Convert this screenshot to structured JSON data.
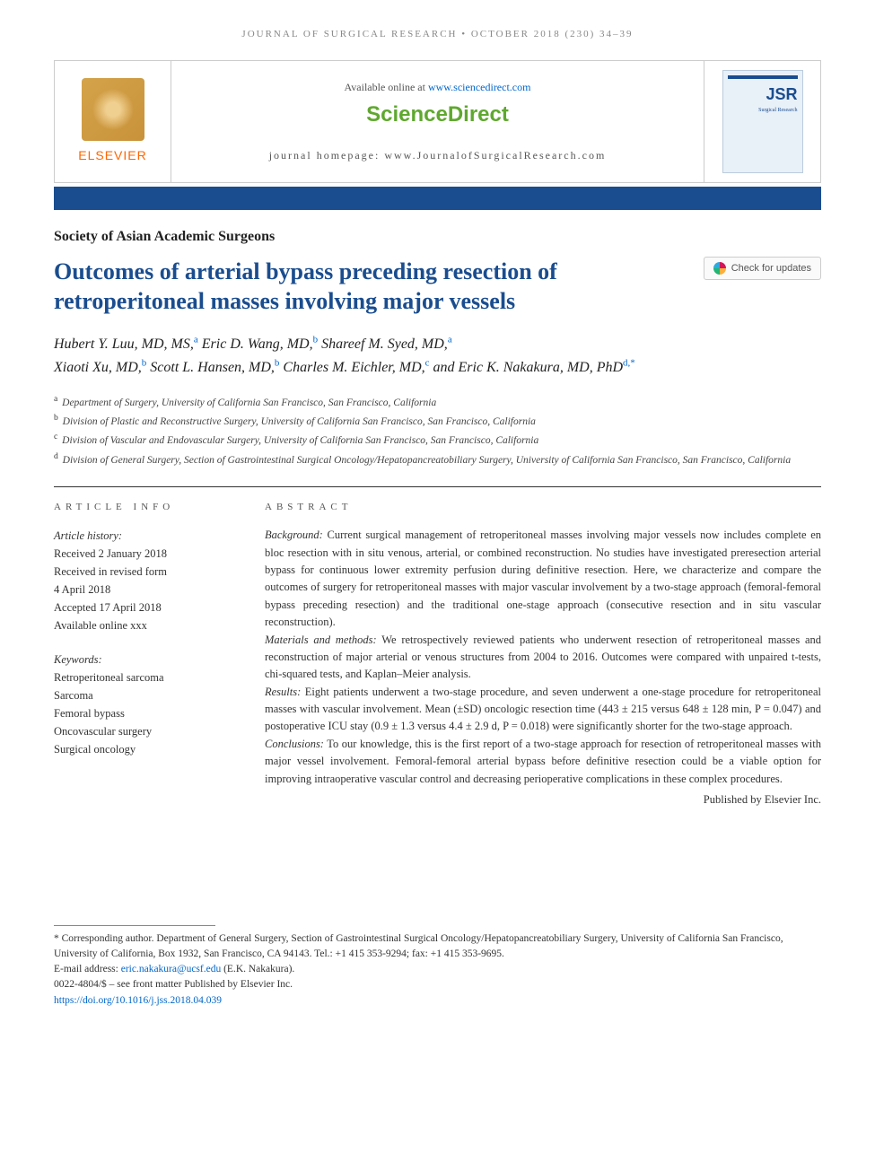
{
  "runningHeader": "JOURNAL OF SURGICAL RESEARCH • OCTOBER 2018 (230) 34–39",
  "masthead": {
    "publisher": "ELSEVIER",
    "availableText": "Available online at ",
    "availableUrl": "www.sciencedirect.com",
    "sdLogo": "ScienceDirect",
    "homepageLabel": "journal homepage: ",
    "homepageUrl": "www.JournalofSurgicalResearch.com",
    "coverAbbrev": "JSR",
    "coverSub": "Surgical Research"
  },
  "society": "Society of Asian Academic Surgeons",
  "title": "Outcomes of arterial bypass preceding resection of retroperitoneal masses involving major vessels",
  "checkUpdates": "Check for updates",
  "authors": [
    {
      "name": "Hubert Y. Luu, MD, MS,",
      "sup": "a"
    },
    {
      "name": "Eric D. Wang, MD,",
      "sup": "b"
    },
    {
      "name": "Shareef M. Syed, MD,",
      "sup": "a"
    },
    {
      "name": "Xiaoti Xu, MD,",
      "sup": "b"
    },
    {
      "name": "Scott L. Hansen, MD,",
      "sup": "b"
    },
    {
      "name": "Charles M. Eichler, MD,",
      "sup": "c"
    },
    {
      "name": "and Eric K. Nakakura, MD, PhD",
      "sup": "d,*"
    }
  ],
  "affiliations": [
    {
      "sup": "a",
      "text": "Department of Surgery, University of California San Francisco, San Francisco, California"
    },
    {
      "sup": "b",
      "text": "Division of Plastic and Reconstructive Surgery, University of California San Francisco, San Francisco, California"
    },
    {
      "sup": "c",
      "text": "Division of Vascular and Endovascular Surgery, University of California San Francisco, San Francisco, California"
    },
    {
      "sup": "d",
      "text": "Division of General Surgery, Section of Gastrointestinal Surgical Oncology/Hepatopancreatobiliary Surgery, University of California San Francisco, San Francisco, California"
    }
  ],
  "articleInfo": {
    "heading": "ARTICLE INFO",
    "historyLabel": "Article history:",
    "history": [
      "Received 2 January 2018",
      "Received in revised form",
      "4 April 2018",
      "Accepted 17 April 2018",
      "Available online xxx"
    ],
    "keywordsLabel": "Keywords:",
    "keywords": [
      "Retroperitoneal sarcoma",
      "Sarcoma",
      "Femoral bypass",
      "Oncovascular surgery",
      "Surgical oncology"
    ]
  },
  "abstract": {
    "heading": "ABSTRACT",
    "sections": [
      {
        "label": "Background:",
        "text": " Current surgical management of retroperitoneal masses involving major vessels now includes complete en bloc resection with in situ venous, arterial, or combined reconstruction. No studies have investigated preresection arterial bypass for continuous lower extremity perfusion during definitive resection. Here, we characterize and compare the outcomes of surgery for retroperitoneal masses with major vascular involvement by a two-stage approach (femoral-femoral bypass preceding resection) and the traditional one-stage approach (consecutive resection and in situ vascular reconstruction)."
      },
      {
        "label": "Materials and methods:",
        "text": " We retrospectively reviewed patients who underwent resection of retroperitoneal masses and reconstruction of major arterial or venous structures from 2004 to 2016. Outcomes were compared with unpaired t-tests, chi-squared tests, and Kaplan–Meier analysis."
      },
      {
        "label": "Results:",
        "text": " Eight patients underwent a two-stage procedure, and seven underwent a one-stage procedure for retroperitoneal masses with vascular involvement. Mean (±SD) oncologic resection time (443 ± 215 versus 648 ± 128 min, P = 0.047) and postoperative ICU stay (0.9 ± 1.3 versus 4.4 ± 2.9 d, P = 0.018) were significantly shorter for the two-stage approach."
      },
      {
        "label": "Conclusions:",
        "text": " To our knowledge, this is the first report of a two-stage approach for resection of retroperitoneal masses with major vessel involvement. Femoral-femoral arterial bypass before definitive resection could be a viable option for improving intraoperative vascular control and decreasing perioperative complications in these complex procedures."
      }
    ],
    "publisher": "Published by Elsevier Inc."
  },
  "footnotes": {
    "corresponding": "* Corresponding author. Department of General Surgery, Section of Gastrointestinal Surgical Oncology/Hepatopancreatobiliary Surgery, University of California San Francisco, University of California, Box 1932, San Francisco, CA 94143. Tel.: +1 415 353-9294; fax: +1 415 353-9695.",
    "emailLabel": "E-mail address: ",
    "email": "eric.nakakura@ucsf.edu",
    "emailAuthor": " (E.K. Nakakura).",
    "issn": "0022-4804/$ – see front matter Published by Elsevier Inc.",
    "doi": "https://doi.org/10.1016/j.jss.2018.04.039"
  }
}
